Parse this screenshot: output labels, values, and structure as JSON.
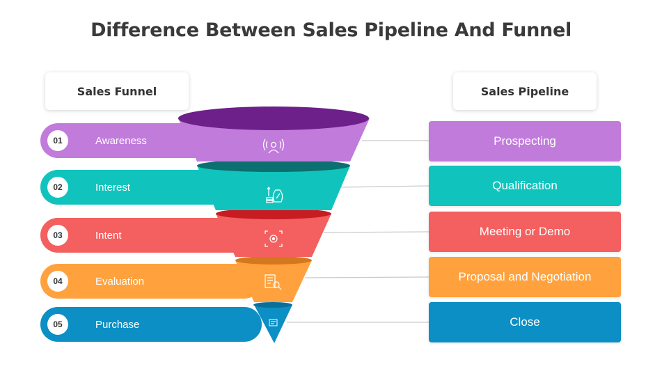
{
  "title": "Difference Between Sales Pipeline And Funnel",
  "funnel_header": "Sales Funnel",
  "pipeline_header": "Sales Pipeline",
  "funnel_steps": [
    {
      "num": "01",
      "label": "Awareness",
      "color": "#c07bdb",
      "icon": "broadcast-person-icon"
    },
    {
      "num": "02",
      "label": "Interest",
      "color": "#10c4bd",
      "icon": "money-bag-percent-icon"
    },
    {
      "num": "03",
      "label": "Intent",
      "color": "#f45f5f",
      "icon": "target-focus-icon"
    },
    {
      "num": "04",
      "label": "Evaluation",
      "color": "#ffa23e",
      "icon": "checklist-magnifier-icon"
    },
    {
      "num": "05",
      "label": "Purchase",
      "color": "#0b8fc4",
      "icon": "cart-icon"
    }
  ],
  "pipeline_stages": [
    {
      "label": "Prospecting",
      "color": "#c07bdb"
    },
    {
      "label": "Qualification",
      "color": "#10c4bd"
    },
    {
      "label": "Meeting or Demo",
      "color": "#f45f5f"
    },
    {
      "label": "Proposal and Negotiation",
      "color": "#ffa23e"
    },
    {
      "label": "Close",
      "color": "#0b8fc4"
    }
  ]
}
